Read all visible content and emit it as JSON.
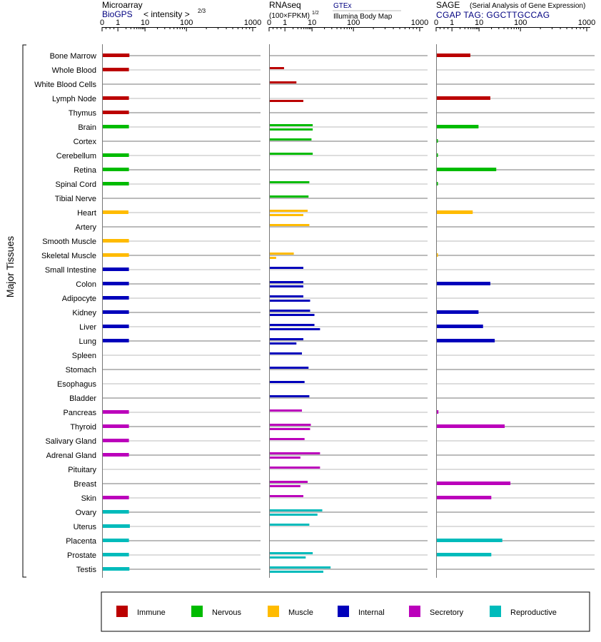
{
  "panels": {
    "microarray": {
      "title": "Microarray",
      "subtitle": "BioGPS",
      "scale_label": "< intensity >",
      "scale_exponent": "2/3"
    },
    "rnaseq": {
      "title": "RNAseq",
      "scale_label": "(100×FPKM)",
      "scale_exponent": "1/2",
      "source_1": "GTEx",
      "source_2": "Illumina Body Map"
    },
    "sage": {
      "title": "SAGE",
      "title_note": "(Serial Analysis of Gene Expression)",
      "subtitle": "CGAP TAG: GGCTTGCCAG"
    }
  },
  "axis_ticks": [
    "0",
    "1",
    "10",
    "100",
    "1000"
  ],
  "y_axis_label": "Major Tissues",
  "legend": [
    {
      "label": "Immune",
      "color": "#bb0000"
    },
    {
      "label": "Nervous",
      "color": "#00bb00"
    },
    {
      "label": "Muscle",
      "color": "#ffbb00"
    },
    {
      "label": "Internal",
      "color": "#0000bb"
    },
    {
      "label": "Secretory",
      "color": "#bb00bb"
    },
    {
      "label": "Reproductive",
      "color": "#00bbbb"
    }
  ],
  "chart_data": [
    {
      "type": "bar",
      "title": "Microarray",
      "xscale": "log-like",
      "xlim": [
        0,
        1000
      ],
      "categories": [
        "Bone Marrow",
        "Whole Blood",
        "White Blood Cells",
        "Lymph Node",
        "Thymus",
        "Brain",
        "Cortex",
        "Cerebellum",
        "Retina",
        "Spinal Cord",
        "Tibial Nerve",
        "Heart",
        "Artery",
        "Smooth Muscle",
        "Skeletal Muscle",
        "Small Intestine",
        "Colon",
        "Adipocyte",
        "Kidney",
        "Liver",
        "Lung",
        "Spleen",
        "Stomach",
        "Esophagus",
        "Bladder",
        "Pancreas",
        "Thyroid",
        "Salivary Gland",
        "Adrenal Gland",
        "Pituitary",
        "Breast",
        "Skin",
        "Ovary",
        "Uterus",
        "Placenta",
        "Prostate",
        "Testis"
      ],
      "groups": [
        "Immune",
        "Immune",
        "Immune",
        "Immune",
        "Immune",
        "Nervous",
        "Nervous",
        "Nervous",
        "Nervous",
        "Nervous",
        "Nervous",
        "Muscle",
        "Muscle",
        "Muscle",
        "Muscle",
        "Internal",
        "Internal",
        "Internal",
        "Internal",
        "Internal",
        "Internal",
        "Internal",
        "Internal",
        "Internal",
        "Internal",
        "Secretory",
        "Secretory",
        "Secretory",
        "Secretory",
        "Secretory",
        "Secretory",
        "Secretory",
        "Reproductive",
        "Reproductive",
        "Reproductive",
        "Reproductive",
        "Reproductive"
      ],
      "values": [
        2.5,
        2.4,
        null,
        2.4,
        2.4,
        2.4,
        null,
        2.4,
        2.4,
        2.4,
        null,
        2.3,
        null,
        2.4,
        2.4,
        2.4,
        2.4,
        2.4,
        2.4,
        2.4,
        2.4,
        null,
        null,
        null,
        null,
        2.4,
        2.4,
        2.4,
        2.4,
        null,
        null,
        2.4,
        2.4,
        2.6,
        2.4,
        2.4,
        2.5
      ]
    },
    {
      "type": "bar",
      "title": "RNAseq",
      "xscale": "log-like",
      "xlim": [
        0,
        1000
      ],
      "categories": [
        "Bone Marrow",
        "Whole Blood",
        "White Blood Cells",
        "Lymph Node",
        "Thymus",
        "Brain",
        "Cortex",
        "Cerebellum",
        "Retina",
        "Spinal Cord",
        "Tibial Nerve",
        "Heart",
        "Artery",
        "Smooth Muscle",
        "Skeletal Muscle",
        "Small Intestine",
        "Colon",
        "Adipocyte",
        "Kidney",
        "Liver",
        "Lung",
        "Spleen",
        "Stomach",
        "Esophagus",
        "Bladder",
        "Pancreas",
        "Thyroid",
        "Salivary Gland",
        "Adrenal Gland",
        "Pituitary",
        "Breast",
        "Skin",
        "Ovary",
        "Uterus",
        "Placenta",
        "Prostate",
        "Testis"
      ],
      "series": [
        {
          "name": "GTEx",
          "values": [
            null,
            0.9,
            2.5,
            null,
            null,
            10,
            9,
            10,
            null,
            7.5,
            7,
            6.5,
            7.5,
            null,
            2,
            4.5,
            4.5,
            4.5,
            8,
            11,
            4.5,
            4,
            7,
            5,
            7.5,
            4,
            8.5,
            5,
            15,
            15,
            6.5,
            4.5,
            17,
            7.5,
            null,
            10,
            27
          ]
        },
        {
          "name": "Illumina Body Map",
          "values": [
            null,
            null,
            null,
            4.5,
            null,
            10,
            null,
            null,
            null,
            null,
            null,
            4.5,
            null,
            null,
            0.4,
            null,
            4.5,
            8,
            11,
            15,
            2.5,
            null,
            null,
            null,
            null,
            null,
            8,
            null,
            3.5,
            null,
            3.5,
            null,
            13,
            null,
            null,
            5.5,
            18
          ]
        }
      ]
    },
    {
      "type": "bar",
      "title": "SAGE",
      "xscale": "log-like",
      "xlim": [
        0,
        1000
      ],
      "categories": [
        "Bone Marrow",
        "Whole Blood",
        "White Blood Cells",
        "Lymph Node",
        "Thymus",
        "Brain",
        "Cortex",
        "Cerebellum",
        "Retina",
        "Spinal Cord",
        "Tibial Nerve",
        "Heart",
        "Artery",
        "Smooth Muscle",
        "Skeletal Muscle",
        "Small Intestine",
        "Colon",
        "Adipocyte",
        "Kidney",
        "Liver",
        "Lung",
        "Spleen",
        "Stomach",
        "Esophagus",
        "Bladder",
        "Pancreas",
        "Thyroid",
        "Salivary Gland",
        "Adrenal Gland",
        "Pituitary",
        "Breast",
        "Skin",
        "Ovary",
        "Uterus",
        "Placenta",
        "Prostate",
        "Testis"
      ],
      "values": [
        4.5,
        null,
        null,
        18,
        null,
        9,
        0.05,
        0.05,
        25,
        0.05,
        null,
        5.5,
        null,
        null,
        0.05,
        null,
        18,
        null,
        9,
        12,
        23,
        null,
        null,
        null,
        null,
        0.1,
        40,
        null,
        null,
        null,
        55,
        19,
        null,
        null,
        35,
        19,
        null
      ]
    }
  ]
}
